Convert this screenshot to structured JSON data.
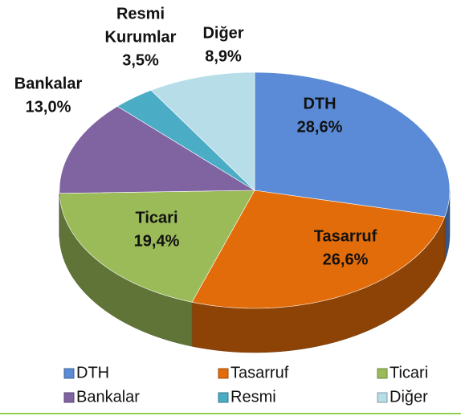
{
  "chart_data": {
    "type": "pie",
    "categories": [
      "DTH",
      "Tasarruf",
      "Ticari",
      "Bankalar",
      "Resmi",
      "Diğer"
    ],
    "slice_labels": [
      "DTH",
      "Tasarruf",
      "Ticari",
      "Bankalar",
      [
        "Resmi",
        "Kurumlar"
      ],
      "Diğer"
    ],
    "values": [
      28.6,
      26.6,
      19.4,
      13.0,
      3.5,
      8.9
    ],
    "value_labels": [
      "28,6%",
      "26,6%",
      "19,4%",
      "13,0%",
      "3,5%",
      "8,9%"
    ],
    "colors": [
      "#5b8bd6",
      "#e36c0a",
      "#9bbb59",
      "#8064a2",
      "#4bacc6",
      "#b7dde8"
    ],
    "legend": "bottom"
  }
}
